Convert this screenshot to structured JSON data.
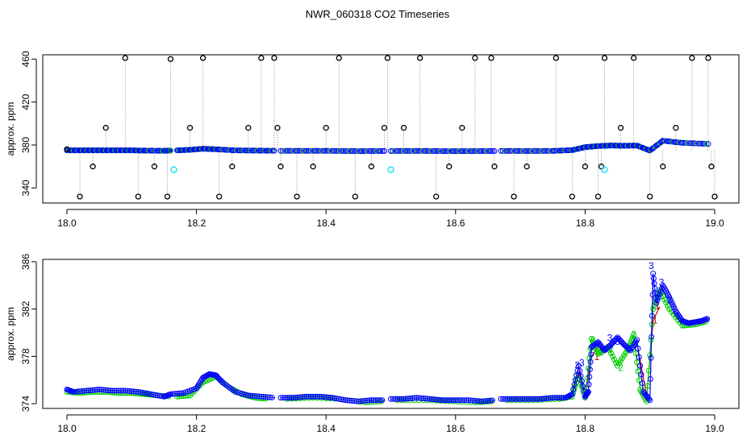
{
  "title": "NWR_060318  CO2 Timeseries",
  "chart_data": [
    {
      "type": "scatter",
      "ylabel": "approx. ppm",
      "xlabel": "",
      "xlim": [
        18.0,
        19.0
      ],
      "ylim": [
        326,
        464
      ],
      "x_ticks": [
        {
          "value": 18.0,
          "label": "18.0"
        },
        {
          "value": 18.2,
          "label": "18.2"
        },
        {
          "value": 18.4,
          "label": "18.4"
        },
        {
          "value": 18.6,
          "label": "18.6"
        },
        {
          "value": 18.8,
          "label": "18.8"
        },
        {
          "value": 19.0,
          "label": "19.0"
        }
      ],
      "y_ticks": [
        {
          "value": 340,
          "label": "340"
        },
        {
          "value": 380,
          "label": "380"
        },
        {
          "value": 420,
          "label": "420"
        },
        {
          "value": 460,
          "label": "460"
        }
      ],
      "series": [
        {
          "marker": "circle",
          "color": "#0000ff",
          "segments": [
            {
              "x": [
                18.0,
                18.02,
                18.04,
                18.06,
                18.08,
                18.1,
                18.12,
                18.15,
                18.16
              ],
              "y": [
                375,
                375,
                375,
                375,
                375,
                375,
                374.8,
                374.6,
                374.8
              ]
            },
            {
              "x": [
                18.17,
                18.19,
                18.21,
                18.23,
                18.26,
                18.29,
                18.32
              ],
              "y": [
                375,
                375.5,
                376.5,
                376,
                375,
                374.8,
                374.6
              ]
            },
            {
              "x": [
                18.33,
                18.37,
                18.41,
                18.45,
                18.49
              ],
              "y": [
                374.5,
                374.6,
                374.5,
                374.3,
                374.4
              ]
            },
            {
              "x": [
                18.5,
                18.54,
                18.58,
                18.62,
                18.66
              ],
              "y": [
                374.4,
                374.5,
                374.3,
                374.3,
                374.4
              ]
            },
            {
              "x": [
                18.67,
                18.71,
                18.75,
                18.78,
                18.8,
                18.82,
                18.84,
                18.86,
                18.88,
                18.9,
                18.92,
                18.95,
                18.99
              ],
              "y": [
                374.5,
                374.4,
                374.5,
                375.2,
                378,
                379,
                379.5,
                379.3,
                379.5,
                374.8,
                384,
                382,
                381
              ]
            }
          ]
        },
        {
          "marker": "point",
          "color": "#000000",
          "x": [
            18.0,
            18.02,
            18.04,
            18.06,
            18.09,
            18.11,
            18.135,
            18.155,
            18.16,
            18.19,
            18.21,
            18.235,
            18.255,
            18.28,
            18.3,
            18.32,
            18.325,
            18.33,
            18.355,
            18.38,
            18.4,
            18.42,
            18.445,
            18.47,
            18.49,
            18.495,
            18.52,
            18.545,
            18.57,
            18.59,
            18.61,
            18.63,
            18.655,
            18.66,
            18.69,
            18.71,
            18.755,
            18.78,
            18.8,
            18.82,
            18.825,
            18.83,
            18.855,
            18.875,
            18.9,
            18.92,
            18.94,
            18.965,
            18.99,
            18.995,
            19.0
          ],
          "y": [
            376,
            332,
            360,
            396,
            461,
            332,
            360,
            332,
            460,
            396,
            461,
            332,
            360,
            396,
            461,
            461,
            396,
            360,
            332,
            360,
            396,
            461,
            332,
            360,
            396,
            461,
            396,
            461,
            332,
            360,
            396,
            461,
            461,
            360,
            332,
            360,
            461,
            332,
            360,
            332,
            360,
            461,
            396,
            461,
            332,
            360,
            396,
            461,
            461,
            360,
            332
          ]
        },
        {
          "marker": "circle",
          "color": "#00e5ee",
          "x": [
            18.165,
            18.5,
            18.83
          ],
          "y": [
            357,
            357,
            357
          ]
        }
      ]
    },
    {
      "type": "line",
      "ylabel": "approx. ppm",
      "xlabel": "",
      "xlim": [
        18.0,
        19.0
      ],
      "ylim": [
        373.6,
        386.2
      ],
      "x_ticks": [
        {
          "value": 18.0,
          "label": "18.0"
        },
        {
          "value": 18.2,
          "label": "18.2"
        },
        {
          "value": 18.4,
          "label": "18.4"
        },
        {
          "value": 18.6,
          "label": "18.6"
        },
        {
          "value": 18.8,
          "label": "18.8"
        },
        {
          "value": 19.0,
          "label": "19.0"
        }
      ],
      "y_ticks": [
        {
          "value": 374,
          "label": "374"
        },
        {
          "value": 378,
          "label": "378"
        },
        {
          "value": 382,
          "label": "382"
        },
        {
          "value": 386,
          "label": "386"
        }
      ],
      "series": [
        {
          "name": "3",
          "color": "#0000ff",
          "labels": [
            {
              "x": 18.788,
              "y": 377.2
            },
            {
              "x": 18.795,
              "y": 377.4
            },
            {
              "x": 18.838,
              "y": 379.5
            },
            {
              "x": 18.85,
              "y": 379.2
            },
            {
              "x": 18.902,
              "y": 385.6
            },
            {
              "x": 18.918,
              "y": 384.2
            },
            {
              "x": 18.93,
              "y": 382.7
            }
          ],
          "segments": [
            {
              "x": [
                18.0,
                18.01,
                18.03,
                18.05,
                18.07,
                18.09,
                18.11,
                18.13,
                18.15,
                18.16
              ],
              "y": [
                375.2,
                375.0,
                375.1,
                375.2,
                375.1,
                375.1,
                375.0,
                374.8,
                374.6,
                374.8
              ]
            },
            {
              "x": [
                18.16,
                18.18,
                18.2,
                18.21,
                18.22,
                18.23,
                18.24,
                18.26,
                18.28,
                18.3,
                18.32
              ],
              "y": [
                374.8,
                374.9,
                375.3,
                376.2,
                376.5,
                376.4,
                375.8,
                375.0,
                374.7,
                374.6,
                374.5
              ]
            },
            {
              "x": [
                18.33,
                18.35,
                18.37,
                18.39,
                18.41,
                18.43,
                18.45,
                18.47,
                18.49
              ],
              "y": [
                374.5,
                374.5,
                374.6,
                374.6,
                374.5,
                374.3,
                374.2,
                374.3,
                374.3
              ]
            },
            {
              "x": [
                18.5,
                18.52,
                18.54,
                18.56,
                18.58,
                18.6,
                18.62,
                18.64,
                18.66
              ],
              "y": [
                374.4,
                374.4,
                374.5,
                374.4,
                374.3,
                374.3,
                374.3,
                374.2,
                374.3
              ]
            },
            {
              "x": [
                18.67,
                18.69,
                18.71,
                18.73,
                18.75,
                18.77,
                18.78,
                18.79,
                18.8,
                18.805,
                18.81,
                18.82,
                18.83,
                18.84,
                18.85,
                18.86,
                18.87,
                18.88,
                18.89,
                18.9,
                18.905,
                18.91,
                18.92,
                18.93,
                18.94,
                18.95,
                18.96,
                18.97,
                18.98,
                18.99
              ],
              "y": [
                374.4,
                374.4,
                374.4,
                374.4,
                374.5,
                374.5,
                374.8,
                377.2,
                374.6,
                375.0,
                378.8,
                379.2,
                378.5,
                379.0,
                379.6,
                379.0,
                378.5,
                379.4,
                375.0,
                374.3,
                385.0,
                382.5,
                384.0,
                383.0,
                381.8,
                381.0,
                380.8,
                380.9,
                381.0,
                381.2
              ]
            }
          ]
        },
        {
          "name": "2",
          "color": "#00cd00",
          "labels": [
            {
              "x": 18.785,
              "y": 376.2
            },
            {
              "x": 18.812,
              "y": 379.3
            },
            {
              "x": 18.825,
              "y": 378.3
            },
            {
              "x": 18.84,
              "y": 378.6
            },
            {
              "x": 18.855,
              "y": 377.0
            },
            {
              "x": 18.875,
              "y": 379.8
            },
            {
              "x": 18.952,
              "y": 380.6
            }
          ],
          "segments": [
            {
              "x": [
                18.0,
                18.02,
                18.04,
                18.06,
                18.08,
                18.1,
                18.12,
                18.14,
                18.16
              ],
              "y": [
                375.0,
                374.9,
                375.0,
                375.0,
                374.9,
                374.9,
                374.8,
                374.7,
                374.6
              ]
            },
            {
              "x": [
                18.17,
                18.19,
                18.21,
                18.23,
                18.25,
                18.27,
                18.29,
                18.31
              ],
              "y": [
                374.6,
                374.7,
                375.8,
                376.3,
                375.4,
                374.8,
                374.5,
                374.4
              ]
            },
            {
              "x": [
                18.34,
                18.38,
                18.42,
                18.46,
                18.49
              ],
              "y": [
                374.4,
                374.5,
                374.4,
                374.1,
                374.2
              ]
            },
            {
              "x": [
                18.51,
                18.55,
                18.59,
                18.63,
                18.66
              ],
              "y": [
                374.3,
                374.3,
                374.2,
                374.1,
                374.2
              ]
            },
            {
              "x": [
                18.68,
                18.72,
                18.76,
                18.78,
                18.79,
                18.8,
                18.81,
                18.82,
                18.835,
                18.85,
                18.865,
                18.875,
                18.885,
                18.895,
                18.905,
                18.915,
                18.93,
                18.95,
                18.97,
                18.99
              ],
              "y": [
                374.3,
                374.3,
                374.4,
                374.6,
                376.4,
                374.5,
                379.5,
                378.2,
                378.8,
                377.2,
                378.5,
                379.8,
                375.2,
                374.2,
                382.0,
                383.6,
                382.0,
                380.6,
                380.7,
                381.0
              ]
            }
          ]
        },
        {
          "name": "1",
          "color": "#cc0000",
          "labels": [
            {
              "x": 18.792,
              "y": 376.5
            },
            {
              "x": 18.818,
              "y": 377.9
            },
            {
              "x": 18.908,
              "y": 381.0
            },
            {
              "x": 18.912,
              "y": 382.2
            }
          ],
          "segments": [
            {
              "x": [
                18.78,
                18.79,
                18.8,
                18.81,
                18.82,
                18.835,
                18.85,
                18.865,
                18.88,
                18.895,
                18.905,
                18.915
              ],
              "y": [
                374.7,
                376.6,
                374.6,
                378.0,
                378.8,
                378.6,
                379.3,
                378.7,
                379.2,
                374.6,
                381.0,
                382.2
              ]
            }
          ]
        }
      ]
    }
  ]
}
